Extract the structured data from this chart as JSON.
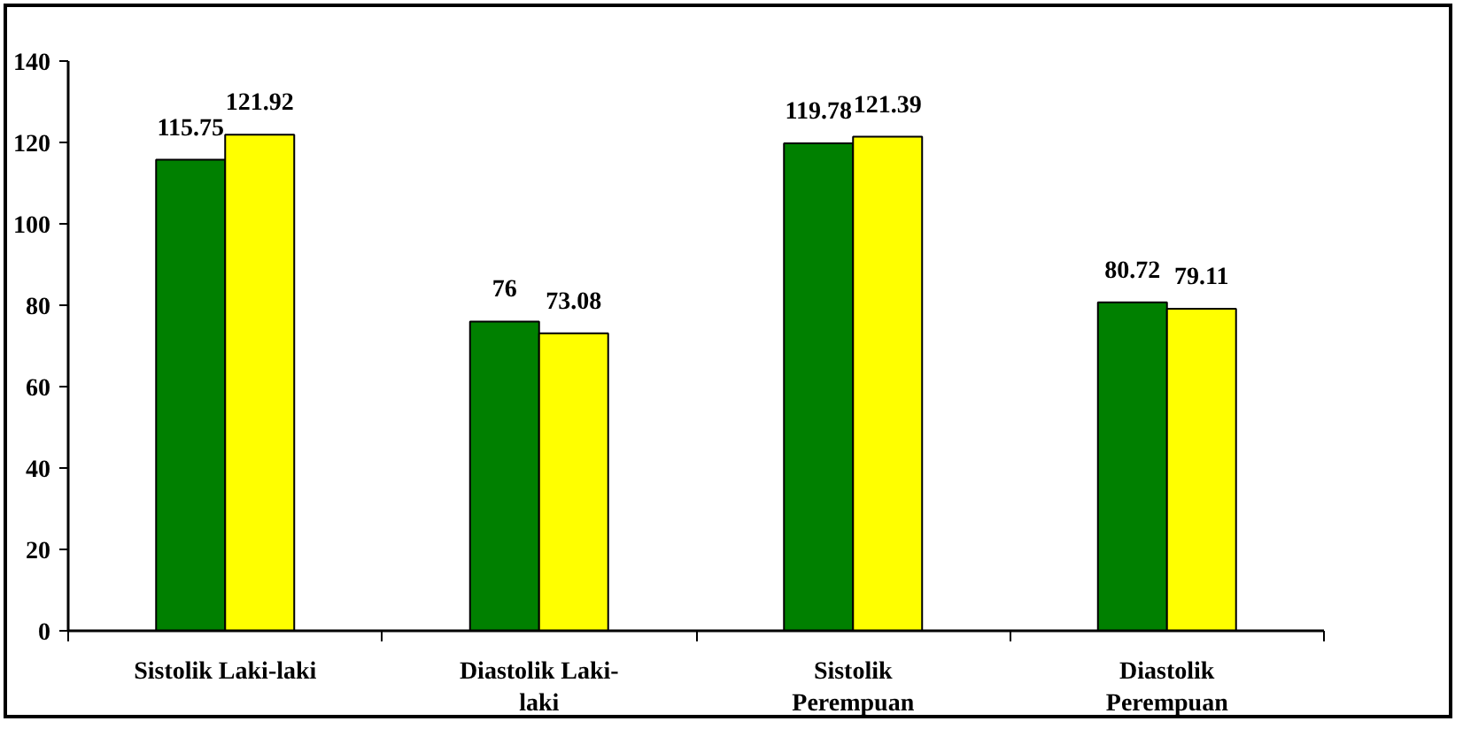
{
  "chart_data": {
    "type": "bar",
    "categories": [
      "Sistolik Laki-laki",
      "Diastolik Laki-\nlaki",
      "Sistolik\nPerempuan",
      "Diastolik\nPerempuan"
    ],
    "series": [
      {
        "color": "#008000",
        "values": [
          115.75,
          76,
          119.78,
          80.72
        ]
      },
      {
        "color": "#ffff00",
        "values": [
          121.92,
          73.08,
          121.39,
          79.11
        ]
      }
    ],
    "ylim": [
      0,
      140
    ],
    "yticks": [
      0,
      20,
      40,
      60,
      80,
      100,
      120,
      140
    ],
    "grid": false,
    "data_labels": true
  }
}
